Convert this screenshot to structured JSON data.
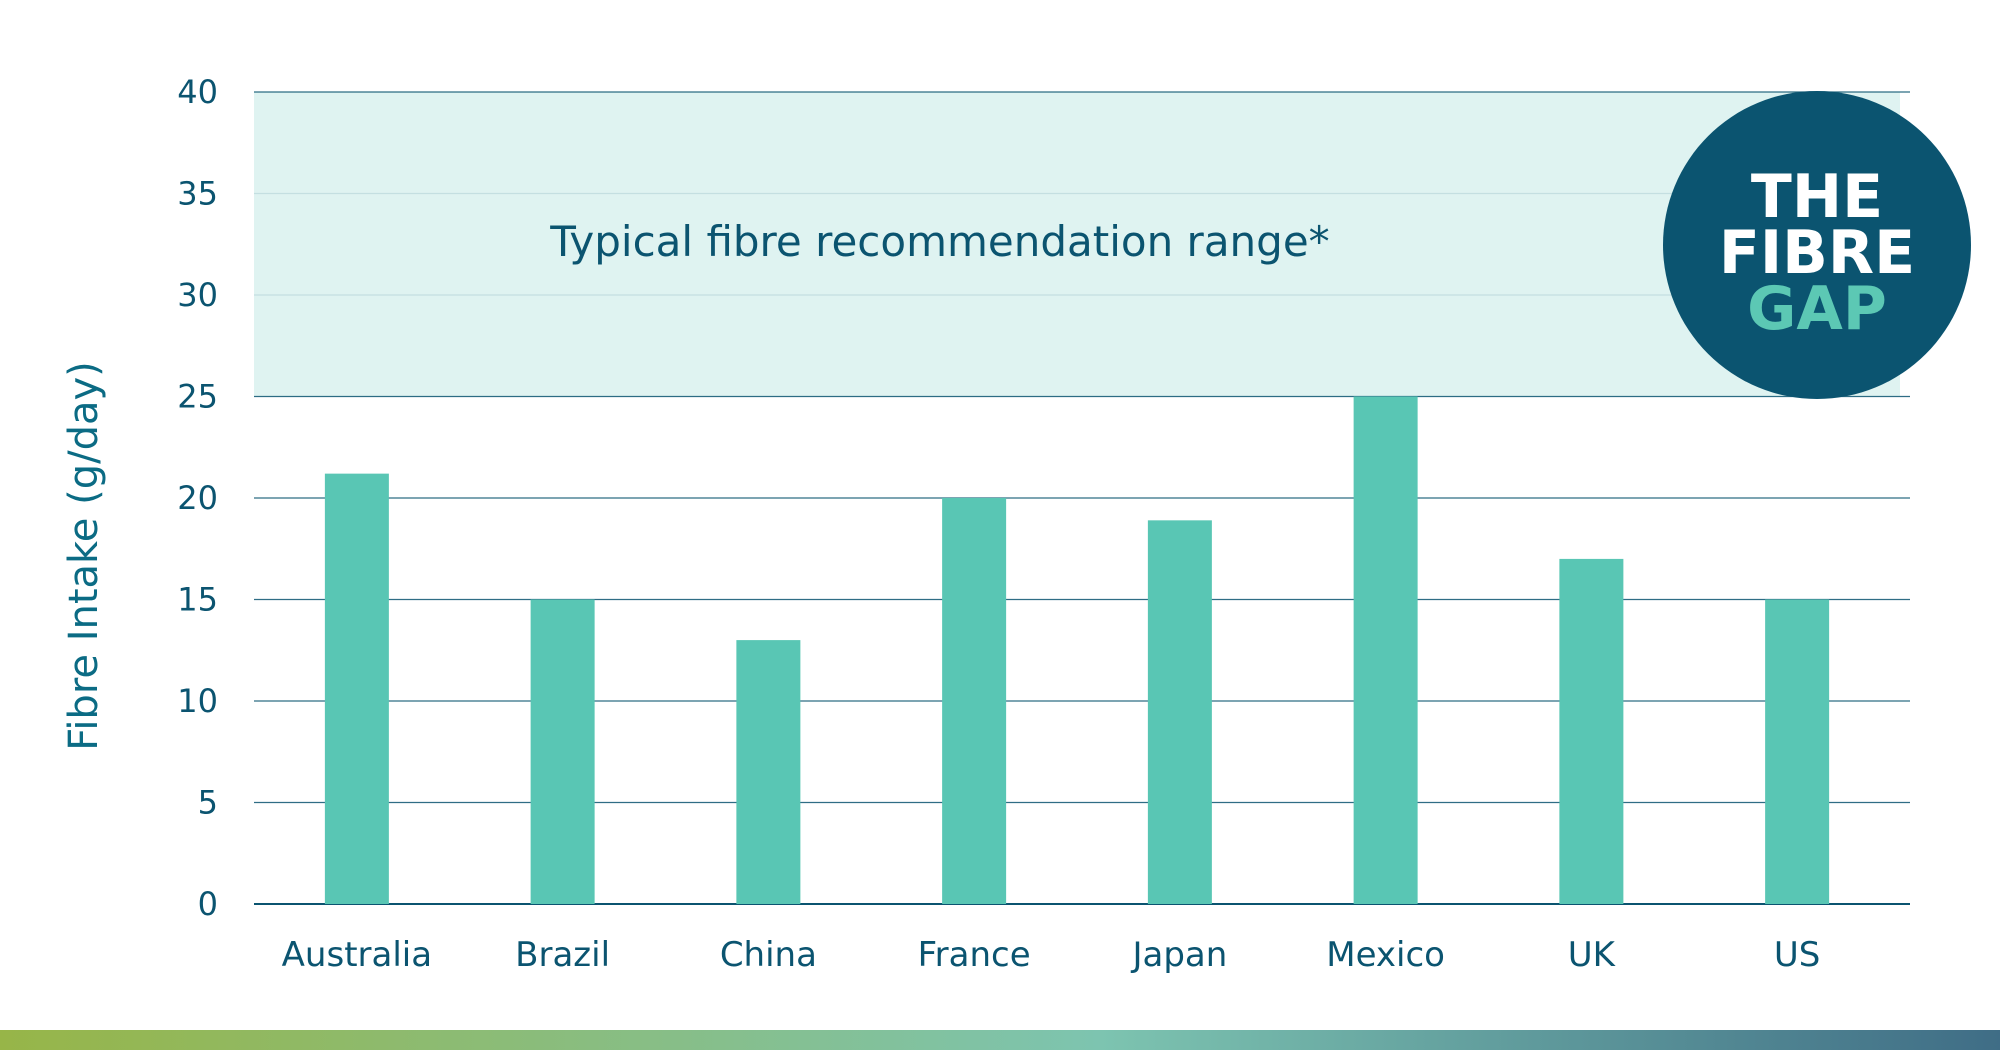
{
  "chart_data": {
    "type": "bar",
    "categories": [
      "Australia",
      "Brazil",
      "China",
      "France",
      "Japan",
      "Mexico",
      "UK",
      "US"
    ],
    "values": [
      21.2,
      15,
      13,
      20,
      18.9,
      25,
      17,
      15
    ],
    "ylabel": "Fibre Intake (g/day)",
    "xlabel": "",
    "ylim": [
      0,
      40
    ],
    "yticks": [
      "0",
      "5",
      "10",
      "15",
      "20",
      "25",
      "30",
      "35",
      "40"
    ],
    "recommendation_band": {
      "label": "Typical fibre recommendation range*",
      "from": 25,
      "to": 40
    },
    "grid": true,
    "colors": {
      "bar": "#59c6b4",
      "band": "#dff3f1",
      "axis_text": "#0b5470",
      "grid": "#0b5470"
    }
  },
  "badge": {
    "line1": "THE",
    "line2": "FIBRE",
    "line3": "GAP",
    "bg_color": "#0b5470",
    "accent_color": "#5cc8b4"
  }
}
